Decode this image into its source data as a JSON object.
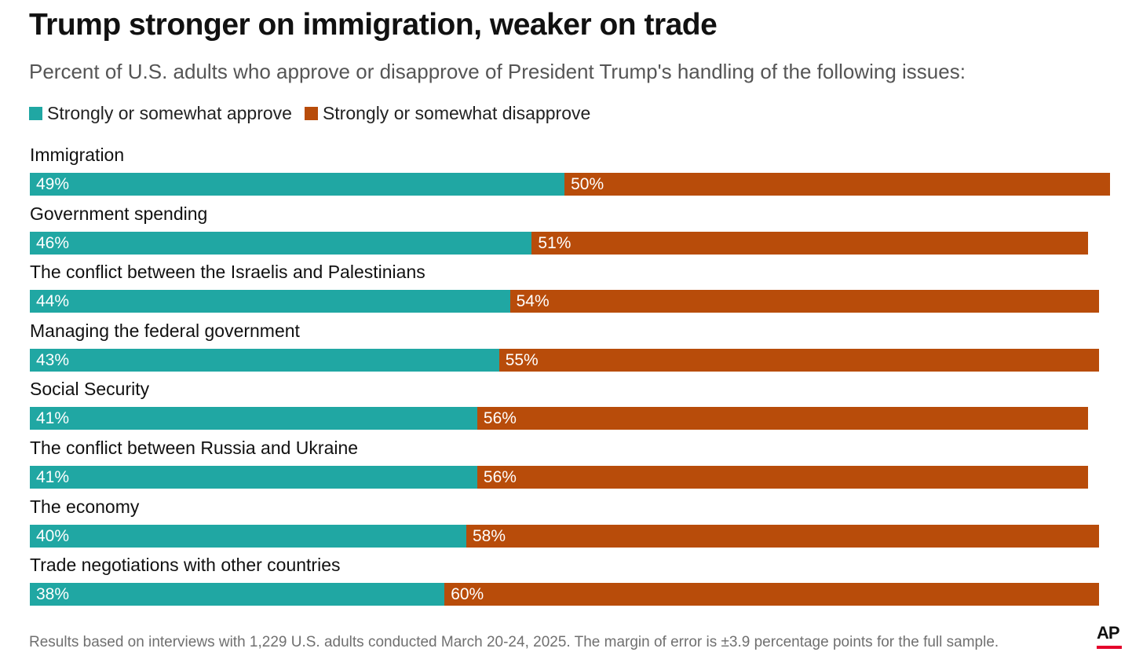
{
  "title": "Trump stronger on immigration, weaker on trade",
  "subtitle": "Percent of U.S. adults who approve or disapprove of President Trump's handling of the following issues:",
  "legend": {
    "approve_label": "Strongly or somewhat approve",
    "disapprove_label": "Strongly or somewhat disapprove"
  },
  "colors": {
    "approve": "#20a7a3",
    "disapprove": "#b84c0a"
  },
  "footnote": "Results based on interviews with 1,229 U.S. adults conducted March 20-24, 2025. The margin of error is ±3.9 percentage points for the full sample.",
  "logo": {
    "text": "AP"
  },
  "chart_data": {
    "type": "bar",
    "orientation": "horizontal",
    "stacked": true,
    "categories": [
      "Immigration",
      "Government spending",
      "The conflict between the Israelis and Palestinians",
      "Managing the federal government",
      "Social Security",
      "The conflict between Russia and Ukraine",
      "The economy",
      "Trade negotiations with other countries"
    ],
    "series": [
      {
        "name": "Strongly or somewhat approve",
        "values": [
          49,
          46,
          44,
          43,
          41,
          41,
          40,
          38
        ],
        "labels": [
          "49%",
          "46%",
          "44%",
          "43%",
          "41%",
          "41%",
          "40%",
          "38%"
        ]
      },
      {
        "name": "Strongly or somewhat disapprove",
        "values": [
          50,
          51,
          54,
          55,
          56,
          56,
          58,
          60
        ],
        "labels": [
          "50%",
          "51%",
          "54%",
          "55%",
          "56%",
          "56%",
          "58%",
          "60%"
        ]
      }
    ],
    "xlim": [
      0,
      100
    ],
    "grid": false,
    "legend_position": "top-left"
  }
}
